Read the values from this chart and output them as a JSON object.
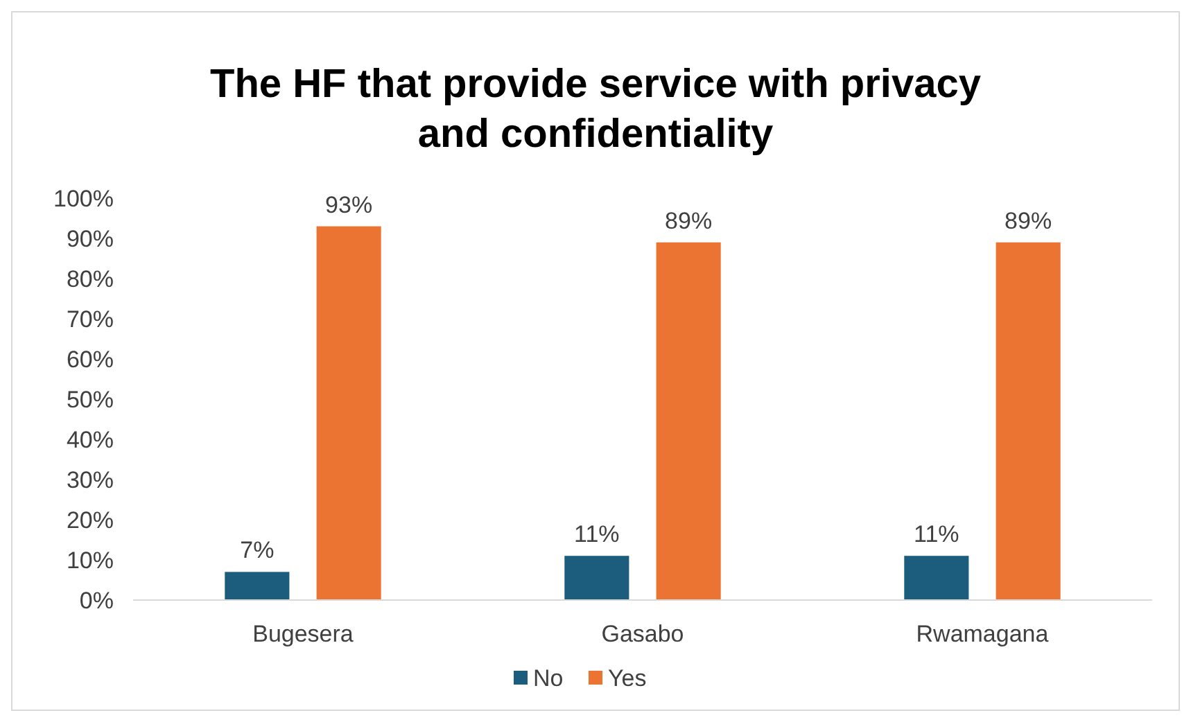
{
  "chart_data": {
    "type": "bar",
    "title": "The HF that provide service with privacy and confidentiality",
    "categories": [
      "Bugesera",
      "Gasabo",
      "Rwamagana"
    ],
    "series": [
      {
        "name": "No",
        "color": "#1c5d7e",
        "values": [
          7,
          11,
          11
        ],
        "value_labels": [
          "7%",
          "11%",
          "11%"
        ]
      },
      {
        "name": "Yes",
        "color": "#ec7433",
        "values": [
          93,
          89,
          89
        ],
        "value_labels": [
          "93%",
          "89%",
          "89%"
        ]
      }
    ],
    "ylim": [
      0,
      100
    ],
    "yticks": [
      {
        "value": 0,
        "label": "0%"
      },
      {
        "value": 10,
        "label": "10%"
      },
      {
        "value": 20,
        "label": "20%"
      },
      {
        "value": 30,
        "label": "30%"
      },
      {
        "value": 40,
        "label": "40%"
      },
      {
        "value": 50,
        "label": "50%"
      },
      {
        "value": 60,
        "label": "60%"
      },
      {
        "value": 70,
        "label": "70%"
      },
      {
        "value": 80,
        "label": "80%"
      },
      {
        "value": 90,
        "label": "90%"
      },
      {
        "value": 100,
        "label": "100%"
      }
    ],
    "grid": false,
    "legend": "bottom"
  }
}
